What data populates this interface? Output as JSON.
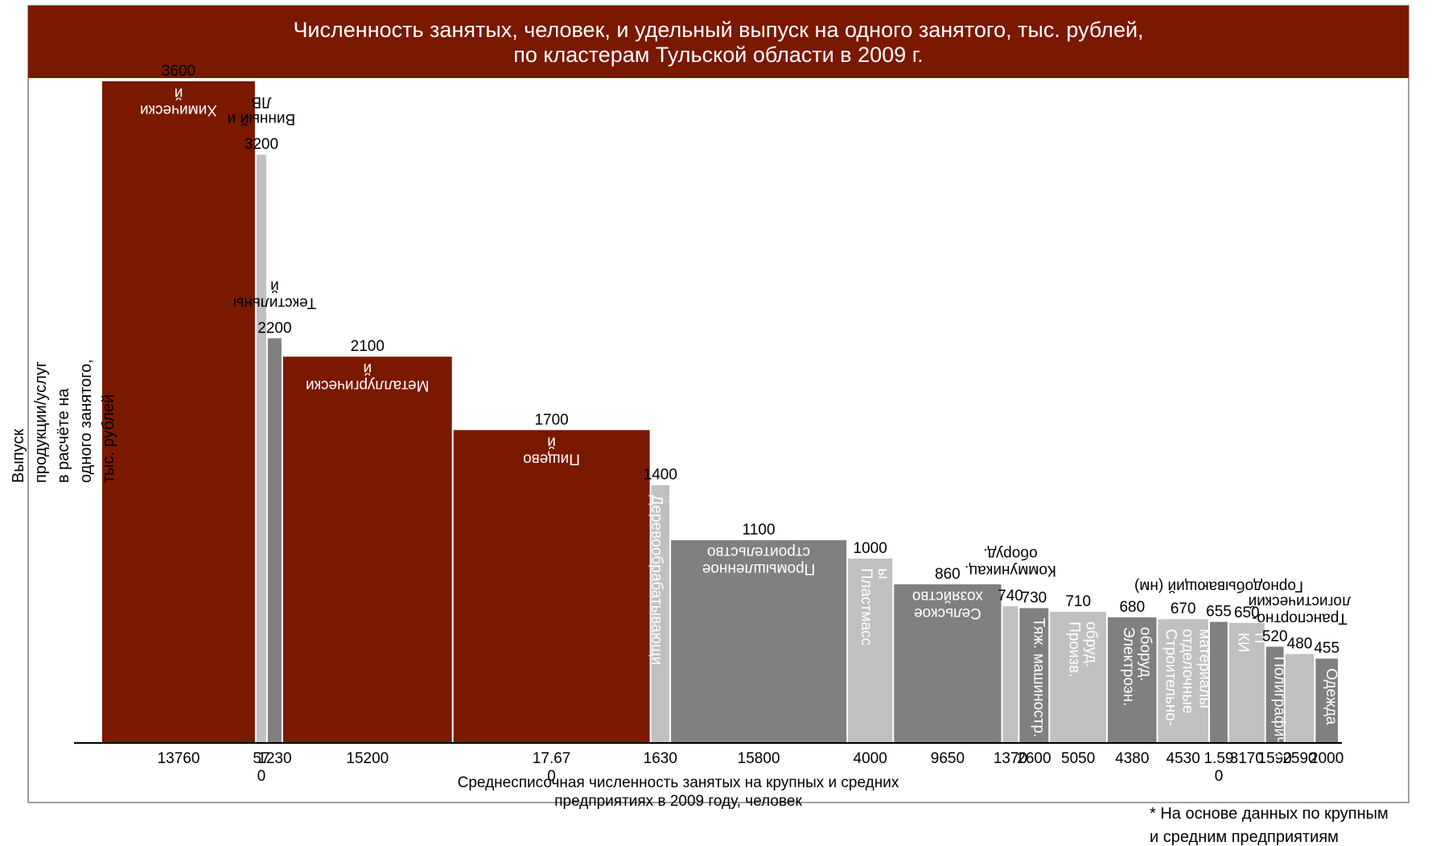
{
  "colors": {
    "header_bg": "#7a1800",
    "maroon": "#7a1800",
    "dark_gray": "#808080",
    "light_gray": "#c0c0c0",
    "border": "#7f7f7f"
  },
  "chart_data": {
    "type": "bar",
    "variant": "variable-width (marimekko)",
    "title_lines": [
      "Численность занятых, человек, и удельный выпуск на одного занятого, тыс. рублей,",
      "по кластерам Тульской области в 2009 г."
    ],
    "ylabel_lines": [
      "Выпуск",
      "продукции/услуг",
      "в расчёте на",
      "одного занятого,",
      "тыс. рублей"
    ],
    "xlabel_lines": [
      "Среднесписочная численность занятых на крупных и средних",
      "предприятиях в 2009 году, человек"
    ],
    "note_lines": [
      "* На основе данных по крупным",
      "и средним предприятиям"
    ],
    "bars": [
      {
        "name_lines": [
          "Химически",
          "й"
        ],
        "value_label": "3600",
        "width_label": [
          "13760"
        ],
        "value": 3600,
        "width": 13760,
        "color": "maroon",
        "name_rotation": "upside-down"
      },
      {
        "name_lines": [
          "Винный и",
          "ЛВ"
        ],
        "value_label": "3200",
        "width_label": [
          "57",
          "0"
        ],
        "value": 3200,
        "width": 570,
        "color": "light_gray",
        "name_rotation": "upside-down"
      },
      {
        "name_lines": [
          "Текстильны",
          "й"
        ],
        "value_label": "2200",
        "width_label": [
          "1230"
        ],
        "value": 2200,
        "width": 1230,
        "color": "dark_gray",
        "name_rotation": "upside-down"
      },
      {
        "name_lines": [
          "Металлургически",
          "й"
        ],
        "value_label": "2100",
        "width_label": [
          "15200"
        ],
        "value": 2100,
        "width": 15200,
        "color": "maroon",
        "name_rotation": "upside-down"
      },
      {
        "name_lines": [
          "Пищево",
          "й"
        ],
        "value_label": "1700",
        "width_label": [
          "17.67",
          "0"
        ],
        "value": 1700,
        "width": 17670,
        "color": "maroon",
        "name_rotation": "upside-down"
      },
      {
        "name_lines": [
          "Деревообрабатывающи",
          "й"
        ],
        "value_label": "1400",
        "width_label": [
          "1630"
        ],
        "value": 1400,
        "width": 1630,
        "color": "light_gray",
        "name_rotation": "vertical"
      },
      {
        "name_lines": [
          "Промышленное",
          "строительство"
        ],
        "value_label": "1100",
        "width_label": [
          "15800"
        ],
        "value": 1100,
        "width": 15800,
        "color": "dark_gray",
        "name_rotation": "upside-down"
      },
      {
        "name_lines": [
          "Пластмасс",
          "ы"
        ],
        "value_label": "1000",
        "width_label": [
          "4000"
        ],
        "value": 1000,
        "width": 4000,
        "color": "light_gray",
        "name_rotation": "vertical"
      },
      {
        "name_lines": [
          "Сельское",
          "хозяйство"
        ],
        "value_label": "860",
        "width_label": [
          "9650"
        ],
        "value": 860,
        "width": 9650,
        "color": "dark_gray",
        "name_rotation": "upside-down"
      },
      {
        "name_lines": [
          "Коммуникац.",
          "оборуд."
        ],
        "value_label": "740",
        "width_label": [
          "1370"
        ],
        "value": 740,
        "width": 1370,
        "color": "light_gray",
        "name_rotation": "upside-down"
      },
      {
        "name_lines": [
          "Тяж. машиностр."
        ],
        "value_label": "730",
        "width_label": [
          "2600"
        ],
        "value": 730,
        "width": 2600,
        "color": "dark_gray",
        "name_rotation": "vertical"
      },
      {
        "name_lines": [
          "Произв.",
          "обруд."
        ],
        "value_label": "710",
        "width_label": [
          "5050"
        ],
        "value": 710,
        "width": 5050,
        "color": "light_gray",
        "name_rotation": "vertical"
      },
      {
        "name_lines": [
          "Электроэн.",
          "оборуд."
        ],
        "value_label": "680",
        "width_label": [
          "4380"
        ],
        "value": 680,
        "width": 4380,
        "color": "dark_gray",
        "name_rotation": "vertical"
      },
      {
        "name_lines": [
          "Строительно-",
          "отделочные",
          "материалы"
        ],
        "value_label": "670",
        "width_label": [
          "4530"
        ],
        "value": 670,
        "width": 4530,
        "color": "light_gray",
        "name_rotation": "vertical"
      },
      {
        "name_lines": [
          "Горнодобывающий (нм)"
        ],
        "value_label": "655",
        "width_label": [
          "1.59",
          "0"
        ],
        "value": 655,
        "width": 1590,
        "color": "dark_gray",
        "name_rotation": "upside-down"
      },
      {
        "name_lines": [
          "КИ",
          "П"
        ],
        "value_label": "650",
        "width_label": [
          "3170"
        ],
        "value": 650,
        "width": 3170,
        "color": "light_gray",
        "name_rotation": "vertical"
      },
      {
        "name_lines": [
          "Полиграфич-й"
        ],
        "value_label": "520",
        "width_label": [
          "1590"
        ],
        "value": 520,
        "width": 1590,
        "color": "dark_gray",
        "name_rotation": "vertical"
      },
      {
        "name_lines": [
          "Транспортно-",
          "логистический"
        ],
        "value_label": "480",
        "width_label": [
          "2590"
        ],
        "value": 480,
        "width": 2590,
        "color": "light_gray",
        "name_rotation": "upside-down"
      },
      {
        "name_lines": [
          "Одежда"
        ],
        "value_label": "455",
        "width_label": [
          "2000"
        ],
        "value": 455,
        "width": 2000,
        "color": "dark_gray",
        "name_rotation": "vertical"
      }
    ]
  }
}
